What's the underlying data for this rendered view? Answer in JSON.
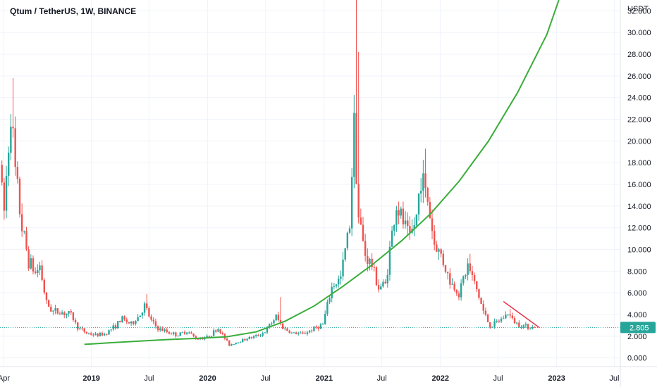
{
  "chart_data": {
    "type": "candlestick",
    "title": "Qtum / TetherUS, 1W, BINANCE",
    "y_unit": "USDT",
    "ylim": [
      -0.8,
      33
    ],
    "y_ticks": [
      "0.000",
      "2.000",
      "4.000",
      "6.000",
      "8.000",
      "10.000",
      "12.000",
      "14.000",
      "16.000",
      "18.000",
      "20.000",
      "22.000",
      "24.000",
      "26.000",
      "28.000",
      "30.000",
      "32.000"
    ],
    "y_tick_values": [
      0,
      2,
      4,
      6,
      8,
      10,
      12,
      14,
      16,
      18,
      20,
      22,
      24,
      26,
      28,
      30,
      32
    ],
    "x_range": [
      "2018-03-20",
      "2023-07-20"
    ],
    "x_ticks": [
      {
        "label": "Apr",
        "date": "2018-04-01",
        "bold": false
      },
      {
        "label": "2019",
        "date": "2019-01-01",
        "bold": true
      },
      {
        "label": "Jul",
        "date": "2019-07-01",
        "bold": false
      },
      {
        "label": "2020",
        "date": "2020-01-01",
        "bold": true
      },
      {
        "label": "Jul",
        "date": "2020-07-01",
        "bold": false
      },
      {
        "label": "2021",
        "date": "2021-01-01",
        "bold": true
      },
      {
        "label": "Jul",
        "date": "2021-07-01",
        "bold": false
      },
      {
        "label": "2022",
        "date": "2022-01-01",
        "bold": true
      },
      {
        "label": "Jul",
        "date": "2022-07-01",
        "bold": false
      },
      {
        "label": "2023",
        "date": "2023-01-01",
        "bold": true
      },
      {
        "label": "Jul",
        "date": "2023-07-01",
        "bold": false
      }
    ],
    "price_path": [
      [
        "2018-03-26",
        17.8
      ],
      [
        "2018-04-09",
        13.5
      ],
      [
        "2018-04-30",
        23
      ],
      [
        "2018-05-14",
        17
      ],
      [
        "2018-06-04",
        12
      ],
      [
        "2018-06-25",
        9
      ],
      [
        "2018-07-16",
        7.8
      ],
      [
        "2018-07-30",
        8.5
      ],
      [
        "2018-08-20",
        5
      ],
      [
        "2018-09-10",
        4.3
      ],
      [
        "2018-10-08",
        4.2
      ],
      [
        "2018-11-05",
        4
      ],
      [
        "2018-11-26",
        2.8
      ],
      [
        "2018-12-24",
        2.3
      ],
      [
        "2019-01-21",
        2.1
      ],
      [
        "2019-02-18",
        2.2
      ],
      [
        "2019-03-18",
        2.8
      ],
      [
        "2019-04-15",
        3.6
      ],
      [
        "2019-05-13",
        3.1
      ],
      [
        "2019-06-10",
        4
      ],
      [
        "2019-06-24",
        4.8
      ],
      [
        "2019-07-15",
        3.4
      ],
      [
        "2019-08-05",
        2.7
      ],
      [
        "2019-09-02",
        2.4
      ],
      [
        "2019-10-07",
        2.1
      ],
      [
        "2019-11-04",
        2.5
      ],
      [
        "2019-12-02",
        1.8
      ],
      [
        "2020-01-06",
        1.9
      ],
      [
        "2020-02-10",
        2.7
      ],
      [
        "2020-03-16",
        1.2
      ],
      [
        "2020-04-13",
        1.5
      ],
      [
        "2020-05-11",
        1.8
      ],
      [
        "2020-06-08",
        2
      ],
      [
        "2020-07-06",
        2.4
      ],
      [
        "2020-08-10",
        3.8
      ],
      [
        "2020-08-31",
        2.8
      ],
      [
        "2020-09-28",
        2.3
      ],
      [
        "2020-11-02",
        2.2
      ],
      [
        "2020-12-07",
        2.7
      ],
      [
        "2021-01-04",
        3.1
      ],
      [
        "2021-02-01",
        6.5
      ],
      [
        "2021-03-01",
        7.4
      ],
      [
        "2021-03-29",
        12.5
      ],
      [
        "2021-04-12",
        22
      ],
      [
        "2021-04-26",
        13
      ],
      [
        "2021-05-17",
        9.5
      ],
      [
        "2021-06-07",
        8.5
      ],
      [
        "2021-06-28",
        6.5
      ],
      [
        "2021-07-19",
        6.8
      ],
      [
        "2021-08-09",
        11.5
      ],
      [
        "2021-08-23",
        14
      ],
      [
        "2021-09-13",
        12.5
      ],
      [
        "2021-10-04",
        11
      ],
      [
        "2021-10-25",
        13
      ],
      [
        "2021-11-08",
        17
      ],
      [
        "2021-11-29",
        14.5
      ],
      [
        "2021-12-20",
        10.5
      ],
      [
        "2022-01-10",
        9.5
      ],
      [
        "2022-02-07",
        7
      ],
      [
        "2022-03-07",
        6
      ],
      [
        "2022-04-04",
        8.5
      ],
      [
        "2022-05-02",
        6.3
      ],
      [
        "2022-05-23",
        4.3
      ],
      [
        "2022-06-13",
        2.9
      ],
      [
        "2022-07-11",
        3.4
      ],
      [
        "2022-08-08",
        4.1
      ],
      [
        "2022-08-29",
        3.3
      ],
      [
        "2022-09-19",
        3.0
      ],
      [
        "2022-10-10",
        2.9
      ],
      [
        "2022-10-24",
        2.805
      ]
    ],
    "price_peaks": [
      [
        "2018-04-30",
        25.8
      ],
      [
        "2021-04-12",
        34
      ],
      [
        "2021-04-19",
        28.2
      ],
      [
        "2021-11-15",
        19.3
      ],
      [
        "2019-06-24",
        5.9
      ],
      [
        "2020-08-17",
        5.6
      ],
      [
        "2022-04-04",
        9.6
      ],
      [
        "2022-08-08",
        4.5
      ]
    ],
    "growth_curve": {
      "color": "#3aad3a",
      "points": [
        [
          "2018-12-10",
          1.25
        ],
        [
          "2019-03-01",
          1.4
        ],
        [
          "2019-06-01",
          1.55
        ],
        [
          "2019-09-01",
          1.7
        ],
        [
          "2019-12-01",
          1.8
        ],
        [
          "2020-03-01",
          1.95
        ],
        [
          "2020-06-01",
          2.4
        ],
        [
          "2020-09-01",
          3.4
        ],
        [
          "2020-12-01",
          4.8
        ],
        [
          "2021-03-01",
          6.6
        ],
        [
          "2021-06-01",
          8.6
        ],
        [
          "2021-09-01",
          10.8
        ],
        [
          "2021-12-01",
          13.3
        ],
        [
          "2022-03-01",
          16.3
        ],
        [
          "2022-06-01",
          20
        ],
        [
          "2022-09-01",
          24.5
        ],
        [
          "2022-12-01",
          29.8
        ],
        [
          "2023-01-08",
          33
        ]
      ]
    },
    "resistance_line": {
      "color": "#e8334a",
      "from": [
        "2022-07-18",
        5.2
      ],
      "to": [
        "2022-11-07",
        2.805
      ]
    },
    "last_price": {
      "label": "2.805",
      "value": 2.805,
      "color": "#26a69a"
    },
    "colors": {
      "up": "#26a69a",
      "down": "#ef5350",
      "grid": "#f0f3fa",
      "axis_text": "#131722"
    }
  }
}
